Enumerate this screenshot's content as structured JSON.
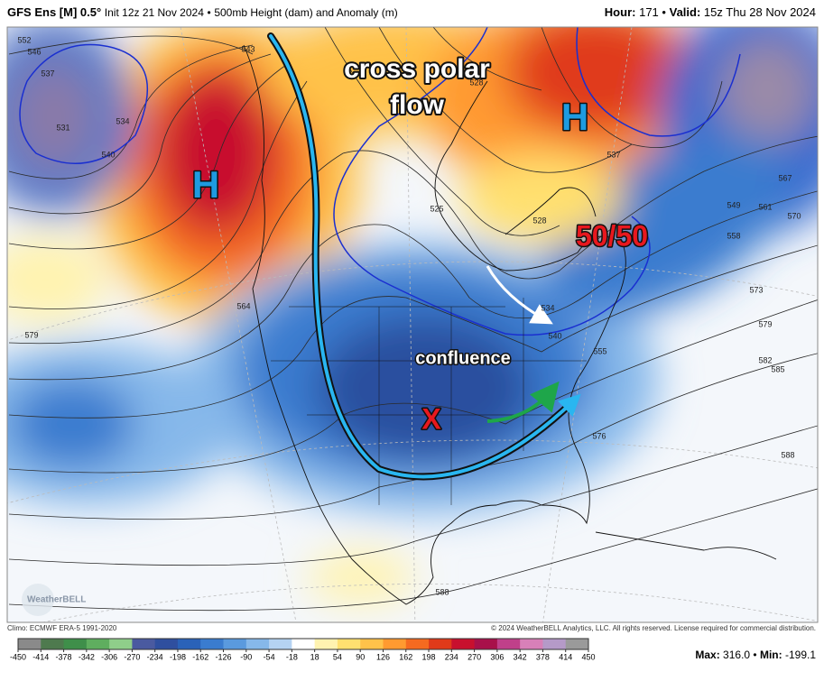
{
  "header": {
    "model": "GFS Ens [M] 0.5°",
    "init": "Init 12z 21 Nov 2024",
    "separator": "•",
    "field": "500mb Height (dam) and Anomaly (m)",
    "hour_label": "Hour:",
    "hour": "171",
    "valid_label": "Valid:",
    "valid": "15z Thu 28 Nov 2024"
  },
  "annotations": {
    "cross_polar": "cross polar",
    "flow": "flow",
    "high": "H",
    "fifty_fifty": "50/50",
    "confluence": "confluence",
    "x": "X"
  },
  "contour_labels": [
    552,
    546,
    537,
    531,
    534,
    540,
    543,
    564,
    579,
    525,
    528,
    528,
    537,
    549,
    558,
    561,
    567,
    570,
    573,
    579,
    582,
    585,
    588,
    576,
    555,
    534,
    540,
    588
  ],
  "logo": "WeatherBELL",
  "footer": {
    "climo": "Climo: ECMWF ERA-5 1991-2020",
    "copyright": "© 2024 WeatherBELL Analytics, LLC. All rights reserved. License required for commercial distribution.",
    "max_label": "Max:",
    "max": "316.0",
    "min_label": "Min:",
    "min": "-199.1"
  },
  "colorbar": {
    "ticks": [
      -450,
      -414,
      -378,
      -342,
      -306,
      -270,
      -234,
      -198,
      -162,
      -126,
      -90,
      -54,
      -18,
      18,
      54,
      90,
      126,
      162,
      198,
      234,
      270,
      306,
      342,
      378,
      414,
      450
    ],
    "colors": [
      "#8a8a8a",
      "#4e7a4e",
      "#3f8f4a",
      "#5fae5f",
      "#8fce8a",
      "#4a5aa0",
      "#2f4f9f",
      "#2a62b8",
      "#3a7ccf",
      "#5a9ade",
      "#86b8ea",
      "#b5d3f2",
      "#ffffff",
      "#fff3b0",
      "#ffe070",
      "#ffc24a",
      "#ff9a30",
      "#f56a20",
      "#e03a1a",
      "#c8102e",
      "#a8104a",
      "#c0408a",
      "#d880b8",
      "#b59ac8",
      "#9a9a9a"
    ]
  }
}
